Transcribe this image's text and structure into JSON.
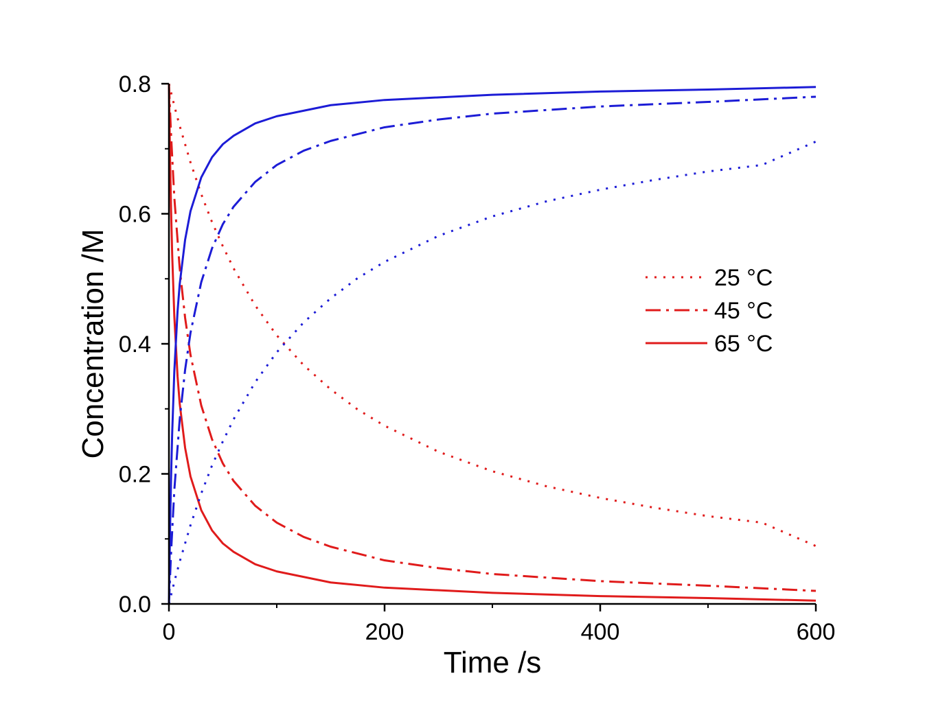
{
  "chart_data": {
    "type": "line",
    "title": "",
    "xlabel": "Time /s",
    "ylabel": "Concentration /M",
    "xlim": [
      0,
      600
    ],
    "ylim": [
      0,
      0.8
    ],
    "xticks": [
      "0",
      "200",
      "400",
      "600"
    ],
    "yticks": [
      "0.0",
      "0.2",
      "0.4",
      "0.6",
      "0.8"
    ],
    "xtick_values": [
      0,
      200,
      400,
      600
    ],
    "ytick_values": [
      0.0,
      0.2,
      0.4,
      0.6,
      0.8
    ],
    "grid": false,
    "legend_position": "center-right",
    "colors": {
      "reactant": "#e01b1b",
      "product": "#1c1cd6"
    },
    "legend": [
      {
        "label": "25 °C",
        "style": "dotted",
        "color": "#e01b1b"
      },
      {
        "label": "45 °C",
        "style": "dash-dot",
        "color": "#e01b1b"
      },
      {
        "label": "65 °C",
        "style": "solid",
        "color": "#e01b1b"
      }
    ],
    "series": [
      {
        "temperature": "25 °C",
        "species": "reactant",
        "style": "dotted",
        "color": "#e01b1b",
        "x": [
          0,
          5,
          10,
          20,
          30,
          40,
          50,
          60,
          80,
          100,
          125,
          150,
          175,
          200,
          250,
          300,
          350,
          400,
          450,
          500,
          550,
          600
        ],
        "y": [
          0.8,
          0.766,
          0.735,
          0.679,
          0.63,
          0.587,
          0.55,
          0.516,
          0.459,
          0.413,
          0.367,
          0.33,
          0.299,
          0.274,
          0.234,
          0.204,
          0.181,
          0.163,
          0.148,
          0.135,
          0.125,
          0.089
        ]
      },
      {
        "temperature": "45 °C",
        "species": "reactant",
        "style": "dash-dot",
        "color": "#e01b1b",
        "x": [
          0,
          2,
          5,
          10,
          15,
          20,
          30,
          40,
          50,
          60,
          80,
          100,
          125,
          150,
          200,
          250,
          300,
          400,
          500,
          600
        ],
        "y": [
          0.8,
          0.72,
          0.625,
          0.516,
          0.44,
          0.383,
          0.305,
          0.253,
          0.216,
          0.189,
          0.151,
          0.125,
          0.103,
          0.088,
          0.067,
          0.055,
          0.046,
          0.035,
          0.028,
          0.02
        ]
      },
      {
        "temperature": "65 °C",
        "species": "reactant",
        "style": "solid",
        "color": "#e01b1b",
        "x": [
          0,
          1,
          2,
          3,
          5,
          8,
          10,
          15,
          20,
          30,
          40,
          50,
          60,
          80,
          100,
          150,
          200,
          300,
          400,
          500,
          600
        ],
        "y": [
          0.8,
          0.688,
          0.604,
          0.538,
          0.442,
          0.35,
          0.308,
          0.24,
          0.196,
          0.144,
          0.113,
          0.093,
          0.08,
          0.061,
          0.05,
          0.033,
          0.025,
          0.017,
          0.012,
          0.009,
          0.005
        ]
      },
      {
        "temperature": "25 °C",
        "species": "product",
        "style": "dotted",
        "color": "#1c1cd6",
        "x": [
          0,
          5,
          10,
          20,
          30,
          40,
          50,
          60,
          80,
          100,
          125,
          150,
          175,
          200,
          250,
          300,
          350,
          400,
          450,
          500,
          550,
          600
        ],
        "y": [
          0.0,
          0.034,
          0.065,
          0.121,
          0.17,
          0.213,
          0.25,
          0.284,
          0.341,
          0.387,
          0.433,
          0.47,
          0.501,
          0.526,
          0.566,
          0.596,
          0.619,
          0.637,
          0.652,
          0.665,
          0.675,
          0.711
        ]
      },
      {
        "temperature": "45 °C",
        "species": "product",
        "style": "dash-dot",
        "color": "#1c1cd6",
        "x": [
          0,
          2,
          5,
          10,
          15,
          20,
          30,
          40,
          50,
          60,
          80,
          100,
          125,
          150,
          200,
          250,
          300,
          400,
          500,
          600
        ],
        "y": [
          0.0,
          0.08,
          0.175,
          0.284,
          0.36,
          0.417,
          0.495,
          0.547,
          0.584,
          0.611,
          0.649,
          0.675,
          0.697,
          0.712,
          0.733,
          0.745,
          0.754,
          0.765,
          0.772,
          0.78
        ]
      },
      {
        "temperature": "65 °C",
        "species": "product",
        "style": "solid",
        "color": "#1c1cd6",
        "x": [
          0,
          1,
          2,
          3,
          5,
          8,
          10,
          15,
          20,
          30,
          40,
          50,
          60,
          80,
          100,
          150,
          200,
          300,
          400,
          500,
          600
        ],
        "y": [
          0.0,
          0.112,
          0.196,
          0.262,
          0.358,
          0.45,
          0.492,
          0.56,
          0.604,
          0.656,
          0.687,
          0.707,
          0.72,
          0.739,
          0.75,
          0.767,
          0.775,
          0.783,
          0.788,
          0.791,
          0.795
        ]
      }
    ]
  }
}
